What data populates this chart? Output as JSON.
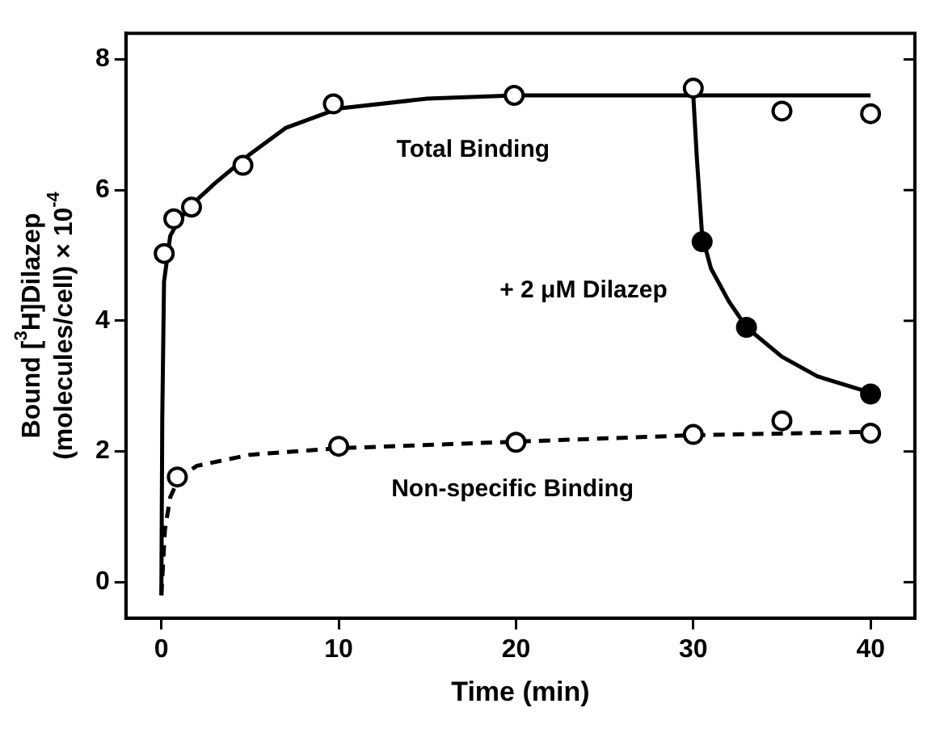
{
  "chart_data": {
    "type": "scatter",
    "xlabel": "Time (min)",
    "ylabel": "Bound [$^{3}$H]Dilazep\n(molecules/cell) × 10$^{-4}$",
    "xlim": [
      -2,
      42.5
    ],
    "ylim": [
      -0.55,
      8.4
    ],
    "xticks": [
      0,
      10,
      20,
      30,
      40
    ],
    "yticks": [
      0,
      2,
      4,
      6,
      8
    ],
    "grid": false,
    "legend": false,
    "marker": "circle",
    "series": [
      {
        "type": "line",
        "marker": "none",
        "line_style": "solid",
        "color": "#000000",
        "x": [
          0,
          0.05,
          0.15,
          0.5,
          1,
          2,
          3,
          5,
          7,
          10,
          15,
          20,
          30,
          40
        ],
        "values": [
          -0.2,
          2.5,
          4.6,
          5.3,
          5.55,
          5.85,
          6.1,
          6.55,
          6.95,
          7.25,
          7.4,
          7.45,
          7.45,
          7.45
        ]
      },
      {
        "type": "line",
        "marker": "none",
        "line_style": "solid",
        "color": "#000000",
        "x": [
          30,
          30.2,
          30.5,
          31,
          32,
          33,
          35,
          37,
          40
        ],
        "values": [
          7.45,
          6.5,
          5.3,
          4.8,
          4.3,
          3.9,
          3.45,
          3.15,
          2.9
        ]
      },
      {
        "type": "line",
        "marker": "none",
        "line_style": "dashed",
        "color": "#000000",
        "x": [
          0,
          0.2,
          0.5,
          1,
          2,
          5,
          10,
          20,
          30,
          40
        ],
        "values": [
          -0.2,
          0.8,
          1.3,
          1.6,
          1.78,
          1.95,
          2.05,
          2.15,
          2.25,
          2.3
        ]
      },
      {
        "name": "Total Binding",
        "color": "#000000",
        "x": [
          0.16,
          0.7,
          1.7,
          4.6,
          9.7,
          19.9,
          30,
          35,
          40
        ],
        "values": [
          5.03,
          5.56,
          5.74,
          6.38,
          7.32,
          7.45,
          7.56,
          7.21,
          7.17
        ]
      },
      {
        "name": "+ 2 μM Dilazep",
        "color": "#000000",
        "colors": [
          "#000000",
          "#000000",
          "#000000"
        ],
        "x": [
          30.5,
          33,
          40
        ],
        "values": [
          5.21,
          3.9,
          2.88
        ]
      },
      {
        "name": "Non-specific Binding",
        "color": "#000000",
        "x": [
          0.9,
          10,
          20,
          30,
          35,
          40
        ],
        "values": [
          1.61,
          2.08,
          2.14,
          2.26,
          2.47,
          2.28
        ]
      }
    ]
  }
}
